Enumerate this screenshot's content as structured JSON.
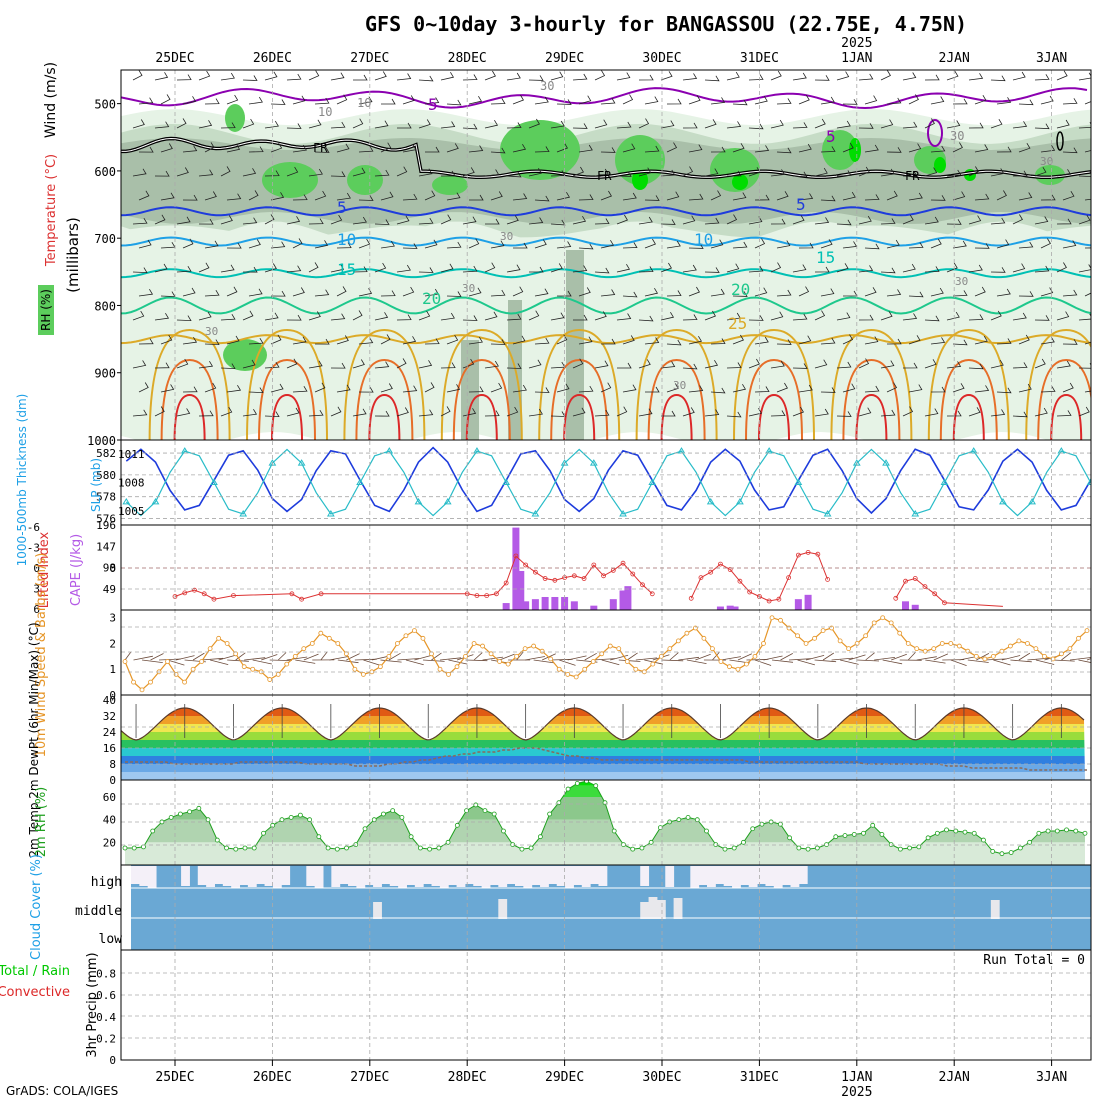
{
  "title": "GFS 0~10day 3-hourly for BANGASSOU (22.75E, 4.75N)",
  "credit": "GrADS: COLA/IGES",
  "date_labels": [
    "25DEC",
    "26DEC",
    "27DEC",
    "28DEC",
    "29DEC",
    "30DEC",
    "31DEC",
    "1JAN",
    "2JAN",
    "3JAN"
  ],
  "year_label": "2025",
  "colors": {
    "rh_light": "#e6f3e6",
    "rh_mid": "#c6dcc6",
    "rh_dark": "#a9bfa9",
    "rh_green": "#5ccd5c",
    "rh_bright": "#00dd00",
    "wind_contour": "#8b00b0",
    "freeze": "#000000",
    "t5": "#1e3cdc",
    "t10": "#1ea0e6",
    "t15": "#00c0b4",
    "t20": "#1ec88c",
    "t25": "#dcaa28",
    "t30": "#e66e28",
    "t35": "#dc2828",
    "thickness": "#1e3cdc",
    "slp": "#28bcc8",
    "lifted": "#dc3232",
    "cape": "#b45ae6",
    "wind10": "#e69628",
    "rh2m": "#1ea01e",
    "cloud": "#6aa8d4",
    "precip_total": "#00c800",
    "precip_conv": "#dc2828"
  },
  "chart_data": [
    {
      "type": "heatmap",
      "name": "upper-air cross section",
      "ylabel": "(millibars)",
      "side_labels": [
        "RH (%)",
        "Temperature (°C)",
        "Wind (m/s)"
      ],
      "ylim": [
        450,
        1000
      ],
      "yticks": [
        500,
        600,
        700,
        800,
        900,
        1000
      ],
      "contour_labels": {
        "wind": [
          "5",
          "5",
          "10",
          "10",
          "30",
          "30",
          "30",
          "10"
        ],
        "freezing": [
          "FR",
          "FR",
          "FR"
        ],
        "temperature": [
          "5",
          "5",
          "10",
          "10",
          "15",
          "15",
          "20",
          "20",
          "25"
        ],
        "rh_small": [
          "30",
          "30",
          "30",
          "30",
          "30",
          "30"
        ]
      },
      "isotherms_mb": {
        "5": 660,
        "10": 705,
        "15": 752,
        "20": 800,
        "25": 850
      },
      "freezing_level_mb": 605
    },
    {
      "type": "line",
      "name": "thickness and SLP",
      "left_label": "1000-500mb Thickness (dm)",
      "right_label": "SLP (mb)",
      "left_ticks": [
        576,
        578,
        580,
        582
      ],
      "right_ticks": [
        1005,
        1008,
        1011
      ],
      "thickness_range": [
        575.4,
        583.2
      ],
      "slp_range": [
        1003.5,
        1012.5
      ]
    },
    {
      "type": "bar",
      "name": "lifted index and CAPE",
      "left_label": "Lifted Index",
      "right_label": "CAPE (J/kg)",
      "li_ticks": [
        "6",
        "3",
        "0",
        "-3",
        "-6"
      ],
      "cape_ticks": [
        49,
        98,
        147,
        196
      ],
      "cape_range": [
        0,
        196
      ],
      "li_range": [
        6,
        -6
      ],
      "cape_values": [
        [
          3.4,
          16
        ],
        [
          3.5,
          190
        ],
        [
          3.55,
          90
        ],
        [
          3.6,
          20
        ],
        [
          3.7,
          25
        ],
        [
          3.8,
          30
        ],
        [
          3.9,
          30
        ],
        [
          4.0,
          30
        ],
        [
          4.1,
          20
        ],
        [
          4.3,
          10
        ],
        [
          4.5,
          25
        ],
        [
          4.6,
          45
        ],
        [
          4.65,
          55
        ],
        [
          5.6,
          8
        ],
        [
          5.7,
          10
        ],
        [
          5.75,
          8
        ],
        [
          6.4,
          25
        ],
        [
          6.5,
          35
        ],
        [
          7.5,
          20
        ],
        [
          7.6,
          12
        ]
      ],
      "li_values": [
        [
          0,
          1.5
        ],
        [
          0.1,
          1.9
        ],
        [
          0.2,
          2.2
        ],
        [
          0.3,
          1.8
        ],
        [
          0.4,
          1.2
        ],
        [
          0.6,
          1.6
        ],
        [
          1.2,
          1.8
        ],
        [
          1.3,
          1.2
        ],
        [
          1.5,
          1.8
        ],
        [
          3.0,
          1.8
        ],
        [
          3.1,
          1.6
        ],
        [
          3.2,
          1.6
        ],
        [
          3.3,
          1.8
        ],
        [
          3.4,
          3.0
        ],
        [
          3.5,
          6.0
        ],
        [
          3.6,
          5.0
        ],
        [
          3.7,
          4.2
        ],
        [
          3.8,
          3.5
        ],
        [
          3.9,
          3.3
        ],
        [
          4.0,
          3.6
        ],
        [
          4.1,
          3.8
        ],
        [
          4.2,
          3.5
        ],
        [
          4.3,
          5.0
        ],
        [
          4.4,
          3.8
        ],
        [
          4.5,
          4.4
        ],
        [
          4.6,
          5.2
        ],
        [
          4.7,
          4.0
        ],
        [
          4.8,
          2.8
        ],
        [
          4.9,
          1.8
        ],
        [
          5.0,
          0
        ],
        [
          5.3,
          1.3
        ],
        [
          5.4,
          3.6
        ],
        [
          5.5,
          4.2
        ],
        [
          5.6,
          5.1
        ],
        [
          5.7,
          4.5
        ],
        [
          5.8,
          3.2
        ],
        [
          5.9,
          2.0
        ],
        [
          6.0,
          1.5
        ],
        [
          6.1,
          1.0
        ],
        [
          6.2,
          1.2
        ],
        [
          6.3,
          3.6
        ],
        [
          6.4,
          6.1
        ],
        [
          6.5,
          6.4
        ],
        [
          6.6,
          6.2
        ],
        [
          6.7,
          3.4
        ],
        [
          7.0,
          0
        ],
        [
          7.4,
          1.3
        ],
        [
          7.5,
          3.2
        ],
        [
          7.6,
          3.5
        ],
        [
          7.7,
          2.6
        ],
        [
          7.8,
          1.8
        ],
        [
          7.9,
          0.8
        ],
        [
          8.5,
          0.4
        ]
      ]
    },
    {
      "type": "line",
      "name": "10m wind",
      "ylabel": "10m Wind Speed & Barbs (m/s)",
      "ylim": [
        0,
        3.3
      ],
      "yticks": [
        0,
        1,
        2,
        3
      ],
      "values": [
        1.3,
        0.5,
        0.2,
        0.5,
        0.9,
        1.3,
        0.8,
        0.5,
        1.0,
        1.3,
        1.8,
        2.2,
        2.0,
        1.6,
        1.1,
        1.0,
        0.9,
        0.6,
        0.8,
        1.2,
        1.5,
        1.8,
        2.0,
        2.4,
        2.2,
        2.0,
        1.6,
        1.0,
        0.8,
        0.9,
        1.1,
        1.5,
        2.0,
        2.3,
        2.5,
        2.2,
        1.6,
        1.0,
        0.8,
        1.1,
        1.5,
        2.0,
        1.9,
        1.6,
        1.3,
        1.2,
        1.5,
        1.8,
        1.9,
        1.7,
        1.4,
        1.0,
        0.8,
        0.7,
        1.0,
        1.3,
        1.6,
        1.9,
        1.8,
        1.3,
        1.0,
        0.9,
        1.2,
        1.5,
        1.8,
        2.1,
        2.4,
        2.6,
        2.2,
        1.8,
        1.3,
        1.1,
        1.0,
        1.2,
        1.5,
        2.0,
        3.0,
        2.9,
        2.6,
        2.3,
        2.0,
        2.2,
        2.5,
        2.6,
        2.1,
        1.8,
        2.0,
        2.3,
        2.8,
        3.0,
        2.8,
        2.4,
        2.0,
        1.8,
        1.7,
        1.8,
        2.0,
        2.0,
        1.9,
        1.7,
        1.5,
        1.4,
        1.5,
        1.7,
        1.9,
        2.1,
        2.0,
        1.8,
        1.5,
        1.4,
        1.6,
        1.8,
        2.2,
        2.5
      ]
    },
    {
      "type": "area",
      "name": "2m temperature and dewpoint",
      "ylabel": "2m Temp 2m DewPt (6hr Min/Max) (°C)",
      "ylim": [
        0,
        40
      ],
      "yticks": [
        0,
        8,
        16,
        24,
        32,
        40
      ],
      "temp_daily": {
        "min": 20,
        "max": 36
      },
      "dewpoint": [
        9,
        9,
        9,
        9,
        9,
        9,
        8,
        8,
        8,
        8,
        8,
        8,
        8,
        8,
        9,
        9,
        9,
        9,
        9,
        9,
        9,
        9,
        8,
        8,
        8,
        8,
        8,
        8,
        7,
        7,
        7,
        7,
        8,
        8,
        9,
        9,
        10,
        10,
        11,
        12,
        12,
        13,
        13,
        14,
        14,
        14,
        15,
        15,
        16,
        16,
        16,
        15,
        14,
        13,
        12,
        12,
        11,
        11,
        10,
        10,
        10,
        10,
        10,
        10,
        10,
        10,
        10,
        10,
        10,
        10,
        10,
        10,
        10,
        10,
        10,
        10,
        9,
        9,
        9,
        9,
        9,
        9,
        9,
        9,
        9,
        9,
        9,
        9,
        9,
        9,
        8,
        8,
        8,
        8,
        8,
        8,
        8,
        8,
        8,
        8,
        7,
        7,
        7,
        6,
        6,
        6,
        6,
        6,
        6,
        6,
        5,
        5,
        5,
        5,
        5,
        5,
        5,
        5
      ]
    },
    {
      "type": "area",
      "name": "2m relative humidity",
      "ylabel": "2m RH (%)",
      "ylim": [
        0,
        75
      ],
      "yticks": [
        20,
        40,
        60
      ],
      "values": [
        15,
        15,
        16,
        30,
        38,
        42,
        45,
        47,
        50,
        40,
        22,
        15,
        14,
        15,
        15,
        28,
        35,
        40,
        42,
        44,
        40,
        25,
        15,
        14,
        15,
        18,
        32,
        40,
        45,
        48,
        42,
        25,
        15,
        14,
        15,
        20,
        35,
        48,
        53,
        48,
        45,
        30,
        18,
        14,
        15,
        25,
        45,
        55,
        67,
        72,
        74,
        70,
        55,
        30,
        18,
        14,
        15,
        20,
        33,
        38,
        40,
        42,
        40,
        30,
        18,
        14,
        15,
        20,
        32,
        36,
        38,
        36,
        24,
        15,
        14,
        15,
        18,
        25,
        26,
        27,
        28,
        35,
        27,
        18,
        14,
        15,
        16,
        24,
        28,
        31,
        30,
        29,
        28,
        22,
        12,
        10,
        11,
        15,
        20,
        28,
        30,
        30,
        31,
        30,
        28
      ]
    },
    {
      "type": "heatmap",
      "name": "cloud cover",
      "ylabel": "Cloud Cover (%)",
      "rows": [
        "high",
        "middle",
        "low"
      ],
      "high_clear": [
        1,
        1,
        1,
        0,
        0,
        0,
        1,
        0,
        1,
        1,
        1,
        1,
        1,
        1,
        1,
        1,
        1,
        1,
        1,
        0,
        0,
        1,
        1,
        0,
        1,
        1,
        1,
        1,
        1,
        1,
        1,
        1,
        1,
        1,
        1,
        1,
        1,
        1,
        1,
        1,
        1,
        1,
        1,
        1,
        1,
        1,
        1,
        1,
        1,
        1,
        1,
        1,
        1,
        1,
        1,
        1,
        1,
        0,
        0,
        0,
        0,
        1,
        0,
        0,
        1,
        0,
        0,
        1,
        1,
        1,
        1,
        1,
        1,
        1,
        1,
        1,
        1,
        1,
        1,
        1,
        1,
        0,
        0,
        0,
        0,
        0,
        0,
        0,
        0,
        0,
        0,
        0,
        0,
        0,
        0,
        0,
        0,
        0,
        0,
        0,
        0,
        0,
        0,
        0,
        0,
        0,
        0,
        0,
        0,
        0,
        0,
        0,
        0,
        0,
        0
      ],
      "middle_clear": [
        0,
        0,
        0,
        0,
        0,
        0,
        0,
        0,
        0,
        0,
        0,
        0,
        0,
        0,
        0,
        0,
        0,
        0,
        0,
        0,
        0,
        0,
        0,
        0,
        0,
        0,
        0,
        0,
        0,
        1,
        0,
        0,
        0,
        0,
        0,
        0,
        0,
        0,
        0,
        0,
        0,
        0,
        0,
        0,
        1,
        0,
        0,
        0,
        0,
        0,
        0,
        0,
        0,
        0,
        0,
        0,
        0,
        0,
        0,
        0,
        0,
        1,
        1,
        1,
        0,
        1,
        0,
        0,
        0,
        0,
        0,
        0,
        0,
        0,
        0,
        0,
        0,
        0,
        0,
        0,
        0,
        0,
        0,
        0,
        0,
        0,
        0,
        0,
        0,
        0,
        0,
        0,
        0,
        0,
        0,
        0,
        0,
        0,
        0,
        0,
        0,
        0,
        0,
        1,
        0,
        0,
        0,
        0,
        0,
        0,
        0,
        0,
        0,
        0,
        0
      ]
    },
    {
      "type": "bar",
      "name": "3hr precipitation",
      "left_label": "Total / Rain",
      "left_label2": "Convective",
      "ylabel": "3hr Precip (mm)",
      "ylim": [
        0,
        1
      ],
      "yticks": [
        0,
        0.2,
        0.4,
        0.6,
        0.8
      ],
      "run_total": "Run Total = 0",
      "values": []
    }
  ]
}
